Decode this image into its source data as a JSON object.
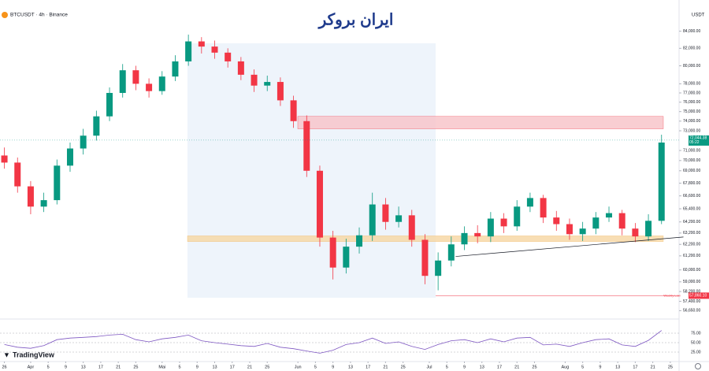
{
  "header": {
    "logo_text": "ایران بروکر",
    "brand": "TradingView"
  },
  "chart_data": [
    {
      "type": "candlestick",
      "title": "BTCUSDT · 4h · Binance",
      "currency": "USDT",
      "log": true,
      "up_color": "#089981",
      "down_color": "#f23645",
      "x": [
        0,
        3,
        6,
        9,
        12,
        15,
        18,
        21,
        24,
        27,
        30,
        33,
        36,
        39,
        42,
        45,
        48,
        51,
        54,
        57,
        60,
        63,
        66,
        69,
        72,
        75,
        78,
        81,
        84,
        87,
        90,
        93,
        96,
        99,
        102,
        105,
        108,
        111,
        114,
        117,
        120,
        123,
        126,
        129,
        132,
        135,
        138,
        141,
        144,
        147,
        150
      ],
      "open": [
        70500,
        69800,
        67500,
        65600,
        66200,
        69500,
        71200,
        72500,
        74500,
        77000,
        79500,
        78000,
        77200,
        78800,
        80500,
        82800,
        82200,
        81500,
        80500,
        79000,
        77800,
        78200,
        76200,
        74000,
        69000,
        62800,
        60200,
        62000,
        63000,
        65800,
        64200,
        64800,
        62600,
        59500,
        60800,
        62200,
        63200,
        62900,
        64500,
        63800,
        65600,
        66400,
        64600,
        64000,
        63100,
        63600,
        64600,
        65000,
        63600,
        62900,
        64300
      ],
      "high": [
        71300,
        70300,
        68000,
        66900,
        70100,
        71800,
        73200,
        75100,
        77600,
        80200,
        80000,
        78600,
        79400,
        81200,
        83600,
        83300,
        82900,
        82000,
        81000,
        79600,
        78900,
        78700,
        76700,
        74600,
        69500,
        63400,
        62700,
        63700,
        66900,
        66400,
        65600,
        65300,
        63100,
        61500,
        62900,
        63800,
        63900,
        65100,
        65000,
        66200,
        66900,
        66700,
        65200,
        64500,
        64200,
        65100,
        65600,
        65300,
        64100,
        64900,
        72600
      ],
      "low": [
        69200,
        66900,
        64900,
        65100,
        65800,
        68900,
        70600,
        72000,
        74000,
        76500,
        77300,
        76500,
        76800,
        78300,
        80000,
        81400,
        80800,
        79800,
        78400,
        77100,
        77200,
        75600,
        73300,
        68400,
        62000,
        59200,
        59700,
        61400,
        62500,
        63500,
        63700,
        62000,
        58800,
        58300,
        60300,
        61700,
        62300,
        62400,
        63200,
        63400,
        65100,
        64100,
        63400,
        62600,
        62500,
        63100,
        64200,
        63000,
        62400,
        62500,
        64000
      ],
      "close": [
        69800,
        67500,
        65600,
        66200,
        69500,
        71200,
        72500,
        74500,
        77000,
        79500,
        78000,
        77200,
        78800,
        80500,
        82800,
        82200,
        81500,
        80500,
        79000,
        77800,
        78200,
        76200,
        74000,
        69000,
        62800,
        60200,
        62000,
        63000,
        65800,
        64200,
        64800,
        62600,
        59500,
        60800,
        62200,
        63200,
        62900,
        64500,
        63800,
        65600,
        66400,
        64600,
        64000,
        63100,
        63600,
        64600,
        65000,
        63600,
        62900,
        64300,
        71800
      ],
      "xlim": [
        -1,
        154
      ],
      "xticks": [
        {
          "value": 0,
          "label": "26"
        },
        {
          "value": 6,
          "label": "Apr"
        },
        {
          "value": 10,
          "label": "5"
        },
        {
          "value": 14,
          "label": "9"
        },
        {
          "value": 18,
          "label": "13"
        },
        {
          "value": 22,
          "label": "17"
        },
        {
          "value": 26,
          "label": "21"
        },
        {
          "value": 30,
          "label": "25"
        },
        {
          "value": 36,
          "label": "Mai"
        },
        {
          "value": 40,
          "label": "5"
        },
        {
          "value": 44,
          "label": "9"
        },
        {
          "value": 48,
          "label": "13"
        },
        {
          "value": 52,
          "label": "17"
        },
        {
          "value": 56,
          "label": "21"
        },
        {
          "value": 60,
          "label": "25"
        },
        {
          "value": 67,
          "label": "Jun"
        },
        {
          "value": 71,
          "label": "5"
        },
        {
          "value": 75,
          "label": "9"
        },
        {
          "value": 79,
          "label": "13"
        },
        {
          "value": 83,
          "label": "17"
        },
        {
          "value": 87,
          "label": "21"
        },
        {
          "value": 91,
          "label": "25"
        },
        {
          "value": 97,
          "label": "Jul"
        },
        {
          "value": 101,
          "label": "5"
        },
        {
          "value": 105,
          "label": "9"
        },
        {
          "value": 109,
          "label": "13"
        },
        {
          "value": 113,
          "label": "17"
        },
        {
          "value": 117,
          "label": "21"
        },
        {
          "value": 121,
          "label": "25"
        },
        {
          "value": 128,
          "label": "Aug"
        },
        {
          "value": 132,
          "label": "5"
        },
        {
          "value": 136,
          "label": "9"
        },
        {
          "value": 140,
          "label": "13"
        },
        {
          "value": 144,
          "label": "17"
        },
        {
          "value": 148,
          "label": "21"
        },
        {
          "value": 152,
          "label": "25"
        }
      ],
      "ylim": [
        56300,
        87000
      ],
      "yticks": [
        {
          "value": 84000,
          "label": "84,000.00"
        },
        {
          "value": 82000,
          "label": "82,000.00"
        },
        {
          "value": 80000,
          "label": "80,000.00"
        },
        {
          "value": 78000,
          "label": "78,000.00"
        },
        {
          "value": 77000,
          "label": "77,000.00"
        },
        {
          "value": 76000,
          "label": "76,000.00"
        },
        {
          "value": 75000,
          "label": "75,000.00"
        },
        {
          "value": 74000,
          "label": "74,000.00"
        },
        {
          "value": 73000,
          "label": "73,000.00"
        },
        {
          "value": 71000,
          "label": "71,000.00"
        },
        {
          "value": 70000,
          "label": "70,000.00"
        },
        {
          "value": 69000,
          "label": "69,000.00"
        },
        {
          "value": 67800,
          "label": "67,800.00"
        },
        {
          "value": 66600,
          "label": "66,600.00"
        },
        {
          "value": 65400,
          "label": "65,400.00"
        },
        {
          "value": 64200,
          "label": "64,200.00"
        },
        {
          "value": 63200,
          "label": "63,200.00"
        },
        {
          "value": 62200,
          "label": "62,200.00"
        },
        {
          "value": 61200,
          "label": "61,200.00"
        },
        {
          "value": 60000,
          "label": "60,000.00"
        },
        {
          "value": 59000,
          "label": "59,000.00"
        },
        {
          "value": 58200,
          "label": "58,200.00"
        },
        {
          "value": 57400,
          "label": "57,400.00"
        },
        {
          "value": 56650,
          "label": "56,650.00"
        }
      ],
      "last_price": {
        "value": 72044.38,
        "label": "72,044.38",
        "countdown": "05:22"
      },
      "weekly_low": {
        "label": "Weekly Low",
        "value": 57860.1,
        "value_label": "57,860.10"
      },
      "zones": [
        {
          "from": 73200,
          "to": 74500,
          "color": "#f8c6cb"
        },
        {
          "from": 62450,
          "to": 62950,
          "color": "#f7d9a8"
        }
      ],
      "trendline": {
        "x": [
          103,
          155
        ],
        "y": [
          61150,
          62850
        ],
        "color": "#131722"
      }
    },
    {
      "type": "line",
      "color": "#7e57c2",
      "x": [
        0,
        3,
        6,
        9,
        12,
        15,
        18,
        21,
        24,
        27,
        30,
        33,
        36,
        39,
        42,
        45,
        48,
        51,
        54,
        57,
        60,
        63,
        66,
        69,
        72,
        75,
        78,
        81,
        84,
        87,
        90,
        93,
        96,
        99,
        102,
        105,
        108,
        111,
        114,
        117,
        120,
        123,
        126,
        129,
        132,
        135,
        138,
        141,
        144,
        147,
        150
      ],
      "values": [
        45,
        38,
        35,
        42,
        58,
        62,
        64,
        66,
        70,
        72,
        58,
        52,
        60,
        64,
        70,
        55,
        50,
        46,
        42,
        40,
        48,
        38,
        34,
        28,
        22,
        30,
        45,
        50,
        62,
        48,
        52,
        40,
        32,
        45,
        55,
        58,
        50,
        60,
        52,
        62,
        64,
        44,
        46,
        40,
        50,
        58,
        60,
        44,
        40,
        56,
        82
      ],
      "xlim": [
        -1,
        154
      ],
      "ylim": [
        0,
        100
      ],
      "yticks": [
        {
          "value": 75,
          "label": "75.00"
        },
        {
          "value": 50,
          "label": "50.00"
        },
        {
          "value": 25,
          "label": "25.00"
        }
      ]
    }
  ]
}
